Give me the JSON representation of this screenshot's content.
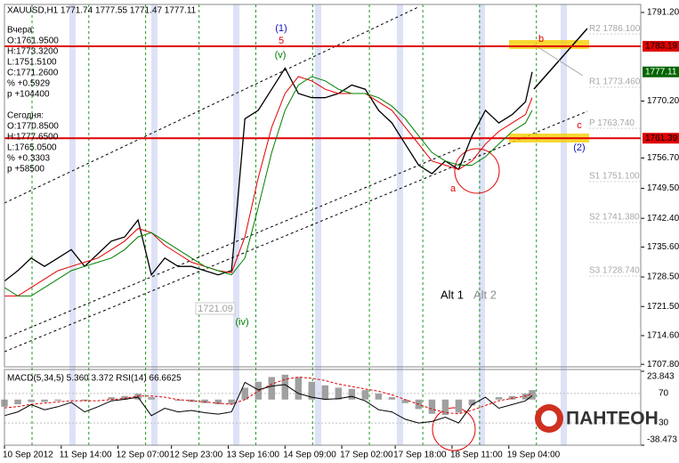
{
  "chart_data": [
    {
      "type": "line",
      "title": "XAUUSD,H1 1771.74 1777.55 1771.47 1777.11",
      "info": [
        {
          "lines": [
            "Вчера:",
            "O:1761.9500",
            "H:1773.3200",
            "L:1751.5100",
            "C:1771.2600",
            "% +0.5929",
            "p +104400"
          ]
        },
        {
          "lines": [
            "Сегодня:",
            "O:1770.8500",
            "H:1777.6500",
            "L:1765.0500",
            "% +0.3303",
            "p +58500"
          ]
        }
      ],
      "x": [
        0,
        4,
        8,
        12,
        16,
        20,
        24,
        28,
        32,
        36,
        40,
        44,
        48,
        52,
        56,
        60,
        64,
        68,
        72,
        76,
        80,
        84,
        88,
        92,
        96,
        100,
        104,
        108,
        112,
        116,
        120,
        124,
        128,
        132,
        136,
        140,
        144,
        148,
        152,
        156,
        158
      ],
      "series": [
        {
          "color": "#000000",
          "values": [
            1727.5,
            1730,
            1733,
            1731,
            1733,
            1735,
            1731,
            1734,
            1737,
            1738,
            1742,
            1729,
            1733,
            1731,
            1731,
            1730,
            1729,
            1730,
            1766,
            1768,
            1773,
            1778,
            1772,
            1771,
            1771,
            1772,
            1774,
            1773,
            1768,
            1765,
            1760,
            1755,
            1753,
            1756,
            1754,
            1762,
            1768,
            1765,
            1767,
            1770,
            1777.11
          ]
        },
        {
          "color": "#e00000",
          "values": [
            1724,
            1724,
            1726,
            1728,
            1730,
            1731,
            1732,
            1733,
            1735,
            1737,
            1740,
            1739,
            1736,
            1734,
            1732,
            1731,
            1730,
            1729.5,
            1738,
            1752,
            1764,
            1772,
            1776,
            1775,
            1773,
            1772,
            1772,
            1772,
            1770,
            1768,
            1764,
            1760,
            1756,
            1755,
            1754,
            1756,
            1760,
            1763,
            1765,
            1767,
            1771
          ]
        },
        {
          "color": "#008000",
          "values": [
            1726,
            1724,
            1724,
            1726,
            1728,
            1730,
            1731,
            1732,
            1733,
            1735,
            1738,
            1739,
            1737,
            1735,
            1733,
            1731,
            1730,
            1729,
            1733,
            1745,
            1758,
            1768,
            1774,
            1776,
            1775,
            1773,
            1772,
            1772,
            1771,
            1769,
            1766,
            1762,
            1758,
            1756,
            1755,
            1755,
            1757,
            1760,
            1763,
            1765,
            1768
          ]
        }
      ],
      "xlim": [
        0,
        190.5
      ],
      "xticks": [
        {
          "value": 0,
          "label": "10 Sep 2012"
        },
        {
          "value": 17,
          "label": "11 Sep 14:00"
        },
        {
          "value": 34,
          "label": "12 Sep 07:00"
        },
        {
          "value": 50,
          "label": "12 Sep 23:00"
        },
        {
          "value": 67,
          "label": "13 Sep 16:00"
        },
        {
          "value": 84,
          "label": "14 Sep 09:00"
        },
        {
          "value": 101,
          "label": "17 Sep 02:00"
        },
        {
          "value": 117,
          "label": "17 Sep 18:00"
        },
        {
          "value": 134,
          "label": "18 Sep 11:00"
        },
        {
          "value": 151,
          "label": "19 Sep 04:00"
        }
      ],
      "ylim": [
        1707.2,
        1793.1
      ],
      "yticks": [
        {
          "value": 1791.2,
          "label": "1791.20"
        },
        {
          "value": 1770.2,
          "label": "1770.20"
        },
        {
          "value": 1756.7,
          "label": "1756.70"
        },
        {
          "value": 1749.5,
          "label": "1749.50"
        },
        {
          "value": 1742.4,
          "label": "1742.40"
        },
        {
          "value": 1735.6,
          "label": "1735.60"
        },
        {
          "value": 1728.5,
          "label": "1728.50"
        },
        {
          "value": 1721.5,
          "label": "1721.50"
        },
        {
          "value": 1714.6,
          "label": "1714.60"
        },
        {
          "value": 1707.8,
          "label": "1707.80"
        }
      ],
      "grid": true,
      "hlines": [
        {
          "value": 1783.19,
          "color": "#e00000"
        },
        {
          "value": 1761.39,
          "color": "#e00000"
        }
      ],
      "last_price": {
        "value": 1777.11,
        "color": "#006400"
      },
      "pivots": [
        {
          "value": 1786.1,
          "label": "R2 1786.100"
        },
        {
          "value": 1773.46,
          "label": "R1 1773.460"
        },
        {
          "value": 1763.74,
          "label": "P 1763.740"
        },
        {
          "value": 1751.1,
          "label": "S1 1751.100"
        },
        {
          "value": 1741.38,
          "label": "S2 1741.380"
        },
        {
          "value": 1728.74,
          "label": "S3 1728.740"
        }
      ],
      "annotations": [
        {
          "text": "(1)",
          "color": "#1010c0"
        },
        {
          "text": "5",
          "color": "#e00000"
        },
        {
          "text": "(v)",
          "color": "#008000"
        },
        {
          "text": "(iv)",
          "color": "#008000"
        },
        {
          "text": "a",
          "color": "#e00000"
        },
        {
          "text": "b",
          "color": "#e00000"
        },
        {
          "text": "c",
          "color": "#e00000"
        },
        {
          "text": "(2)",
          "color": "#1010c0"
        },
        {
          "text": "Alt 1",
          "color": "#000000"
        },
        {
          "text": "Alt 2",
          "color": "#909090"
        },
        {
          "text": "1721.09",
          "color": "#a0a0a0"
        }
      ]
    },
    {
      "type": "macd",
      "title": "MACD(5,34,5) 5.360 3.372 RSI(14) 66.6625",
      "x": [
        0,
        4,
        8,
        12,
        16,
        20,
        24,
        28,
        32,
        36,
        40,
        44,
        48,
        52,
        56,
        60,
        64,
        68,
        72,
        76,
        80,
        84,
        88,
        92,
        96,
        100,
        104,
        108,
        112,
        116,
        120,
        124,
        128,
        132,
        136,
        140,
        144,
        148,
        152,
        156,
        158
      ],
      "series": [
        {
          "color": "#a0a0a0",
          "values": [
            -6,
            -4,
            -2,
            -2,
            -1,
            0,
            -1,
            0,
            2,
            3,
            5,
            2,
            0,
            -1,
            -2,
            -3,
            -4,
            -4,
            10,
            15,
            19,
            21,
            19,
            15,
            12,
            10,
            9,
            8,
            5,
            2,
            -3,
            -8,
            -12,
            -13,
            -11,
            -5,
            0,
            2,
            3,
            5,
            8
          ]
        },
        {
          "color": "#e00000",
          "values": [
            -7,
            -6,
            -4,
            -3,
            -2,
            -1,
            -1,
            -1,
            0,
            1,
            3,
            3,
            2,
            0,
            -1,
            -2,
            -3,
            -4,
            0,
            7,
            13,
            17,
            19,
            18,
            16,
            13,
            11,
            9,
            7,
            4,
            0,
            -4,
            -8,
            -11,
            -12,
            -9,
            -5,
            -1,
            1,
            3,
            5
          ]
        },
        {
          "color": "#000000",
          "axis": "y2",
          "values": [
            40,
            45,
            55,
            48,
            52,
            58,
            45,
            52,
            60,
            62,
            65,
            40,
            50,
            45,
            47,
            44,
            42,
            45,
            85,
            75,
            80,
            82,
            70,
            65,
            62,
            63,
            66,
            60,
            48,
            45,
            35,
            30,
            32,
            38,
            30,
            55,
            65,
            50,
            55,
            60,
            67
          ]
        }
      ],
      "xlim": [
        0,
        190.5
      ],
      "ylim": [
        -38.473,
        23.843
      ],
      "yticks": [
        23.843,
        -38.473
      ],
      "y2lim": [
        0,
        100
      ],
      "y2ticks": [
        70,
        30
      ]
    }
  ],
  "logo": "ПАНТЕОН"
}
